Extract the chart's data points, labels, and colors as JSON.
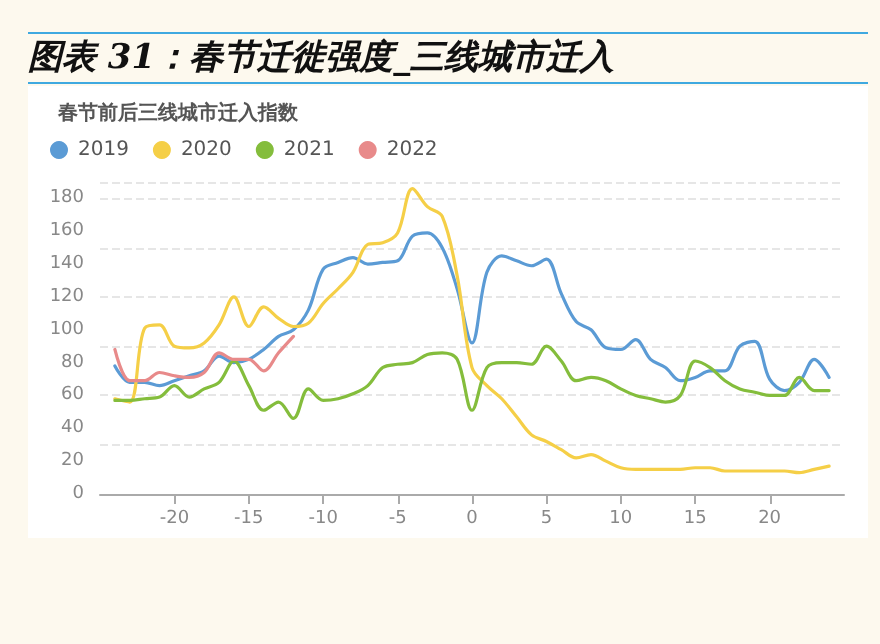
{
  "chart_data": {
    "type": "line",
    "title": "图表 31：春节迁徙强度_三线城市迁入",
    "subtitle": "春节前后三线城市迁入指数",
    "x": [
      -24,
      -23,
      -22,
      -21,
      -20,
      -19,
      -18,
      -17,
      -16,
      -15,
      -14,
      -13,
      -12,
      -11,
      -10,
      -9,
      -8,
      -7,
      -6,
      -5,
      -4,
      -3,
      -2,
      -1,
      0,
      1,
      2,
      3,
      4,
      5,
      6,
      7,
      8,
      9,
      10,
      11,
      12,
      13,
      14,
      15,
      16,
      17,
      18,
      19,
      20,
      21,
      22,
      23,
      24
    ],
    "series": [
      {
        "name": "2019",
        "color": "#5b9bd5",
        "values": [
          78,
          68,
          68,
          66,
          69,
          72,
          75,
          84,
          80,
          82,
          88,
          96,
          100,
          112,
          137,
          141,
          144,
          140,
          141,
          142,
          157,
          159,
          150,
          125,
          92,
          135,
          145,
          142,
          139,
          143,
          122,
          105,
          100,
          89,
          88,
          94,
          82,
          77,
          69,
          71,
          75,
          75,
          90,
          93,
          70,
          63,
          68,
          82,
          71
        ]
      },
      {
        "name": "2020",
        "color": "#f5cf47",
        "values": [
          58,
          56,
          101,
          103,
          90,
          89,
          92,
          103,
          120,
          102,
          114,
          107,
          102,
          104,
          116,
          125,
          135,
          152,
          153,
          159,
          186,
          175,
          169,
          133,
          77,
          66,
          58,
          47,
          36,
          32,
          27,
          22,
          24,
          20,
          16,
          15,
          15,
          15,
          15,
          16,
          16,
          14,
          14,
          14,
          14,
          14,
          13,
          15,
          17
        ]
      },
      {
        "name": "2021",
        "color": "#84bd3c",
        "values": [
          57,
          57,
          58,
          59,
          66,
          59,
          64,
          68,
          81,
          66,
          51,
          56,
          46,
          64,
          57,
          58,
          61,
          66,
          77,
          79,
          80,
          85,
          86,
          82,
          51,
          77,
          80,
          80,
          79,
          90,
          81,
          69,
          71,
          69,
          64,
          60,
          58,
          56,
          60,
          81,
          77,
          69,
          64,
          62,
          60,
          60,
          71,
          63,
          63
        ]
      },
      {
        "name": "2022",
        "color": "#e88a8a",
        "values": [
          88,
          69,
          69,
          74,
          72,
          71,
          74,
          86,
          82,
          82,
          75,
          86,
          96,
          null,
          null,
          null,
          null,
          null,
          null,
          null,
          null,
          null,
          null,
          null,
          null,
          null,
          null,
          null,
          null,
          null,
          null,
          null,
          null,
          null,
          null,
          null,
          null,
          null,
          null,
          null,
          null,
          null,
          null,
          null,
          null,
          null,
          null,
          null,
          null
        ]
      }
    ],
    "xlim": [
      -25,
      25
    ],
    "xticks": [
      -20,
      -15,
      -10,
      -5,
      0,
      5,
      10,
      15,
      20
    ],
    "ylim": [
      0,
      190
    ],
    "yticks": [
      0,
      20,
      40,
      60,
      80,
      100,
      120,
      140,
      160,
      180
    ],
    "grid": "y",
    "legend": "top left",
    "marker": "none",
    "line_style": "solid"
  }
}
